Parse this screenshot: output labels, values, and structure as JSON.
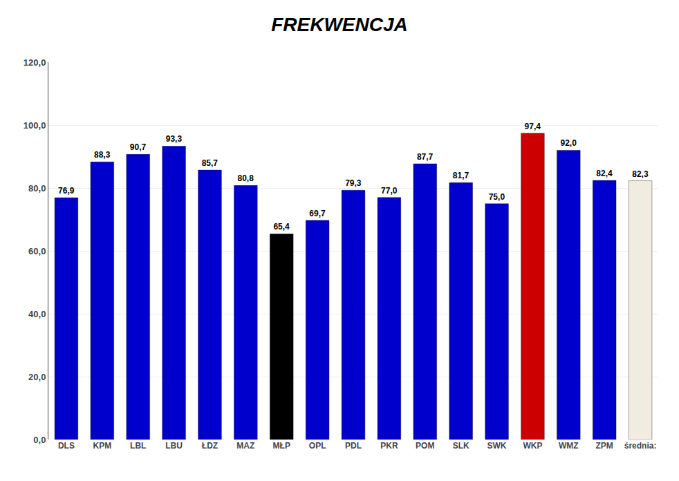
{
  "chart_data": {
    "type": "bar",
    "title": "FREKWENCJA",
    "categories": [
      "DLS",
      "KPM",
      "LBL",
      "LBU",
      "ŁDZ",
      "MAZ",
      "MŁP",
      "OPL",
      "PDL",
      "PKR",
      "POM",
      "SLK",
      "SWK",
      "WKP",
      "WMZ",
      "ZPM",
      "średnia:"
    ],
    "values": [
      76.9,
      88.3,
      90.7,
      93.3,
      85.7,
      80.8,
      65.4,
      69.7,
      79.3,
      77.0,
      87.7,
      81.7,
      75.0,
      97.4,
      92.0,
      82.4,
      82.3
    ],
    "value_labels": [
      "76,9",
      "88,3",
      "90,7",
      "93,3",
      "85,7",
      "80,8",
      "65,4",
      "69,7",
      "79,3",
      "77,0",
      "87,7",
      "81,7",
      "75,0",
      "97,4",
      "92,0",
      "82,4",
      "82,3"
    ],
    "colors": [
      "#0000cc",
      "#0000cc",
      "#0000cc",
      "#0000cc",
      "#0000cc",
      "#0000cc",
      "#000000",
      "#0000cc",
      "#0000cc",
      "#0000cc",
      "#0000cc",
      "#0000cc",
      "#0000cc",
      "#cc0000",
      "#0000cc",
      "#0000cc",
      "#f0ede0"
    ],
    "ylim": [
      0,
      120
    ],
    "yticks": [
      {
        "value": 0,
        "label": "0,0"
      },
      {
        "value": 20,
        "label": "20,0"
      },
      {
        "value": 40,
        "label": "40,0"
      },
      {
        "value": 60,
        "label": "60,0"
      },
      {
        "value": 80,
        "label": "80,0"
      },
      {
        "value": 100,
        "label": "100,0"
      },
      {
        "value": 120,
        "label": "120,0"
      }
    ],
    "grid": true,
    "data_labels": true
  }
}
